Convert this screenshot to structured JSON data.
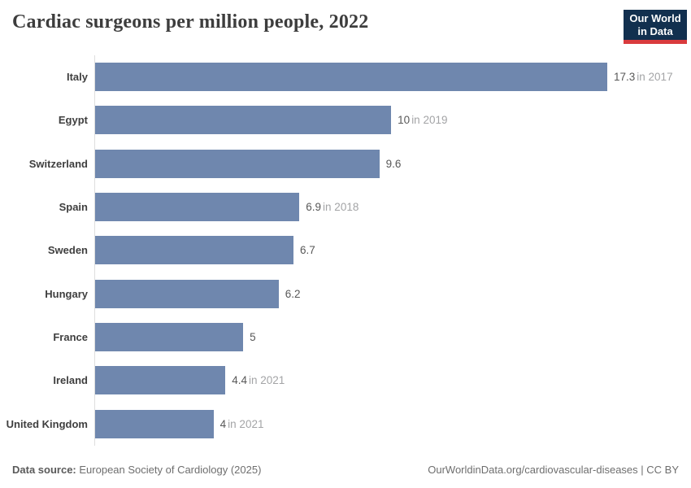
{
  "header": {
    "title": "Cardiac surgeons per million people, 2022",
    "logo": {
      "line1": "Our World",
      "line2": "in Data"
    }
  },
  "chart_data": {
    "type": "bar",
    "orientation": "horizontal",
    "title": "Cardiac surgeons per million people, 2022",
    "categories": [
      "Italy",
      "Egypt",
      "Switzerland",
      "Spain",
      "Sweden",
      "Hungary",
      "France",
      "Ireland",
      "United Kingdom"
    ],
    "values": [
      17.3,
      10,
      9.6,
      6.9,
      6.7,
      6.2,
      5,
      4.4,
      4
    ],
    "value_labels": [
      "17.3",
      "10",
      "9.6",
      "6.9",
      "6.7",
      "6.2",
      "5",
      "4.4",
      "4"
    ],
    "year_notes": [
      "in 2017",
      "in 2019",
      "",
      "in 2018",
      "",
      "",
      "",
      "in 2021",
      "in 2021"
    ],
    "xlim": [
      0,
      17.3
    ],
    "grid": false,
    "legend": "none"
  },
  "colors": {
    "bar": "#6f87ae",
    "logo_bg": "#12304f",
    "logo_accent": "#d93b3d",
    "axis_line": "#dedede",
    "value_text": "#585858",
    "year_note_text": "#a3a4a6"
  },
  "footer": {
    "source_label": "Data source:",
    "source_text": "European Society of Cardiology (2025)",
    "right_text": "OurWorldinData.org/cardiovascular-diseases | CC BY"
  }
}
